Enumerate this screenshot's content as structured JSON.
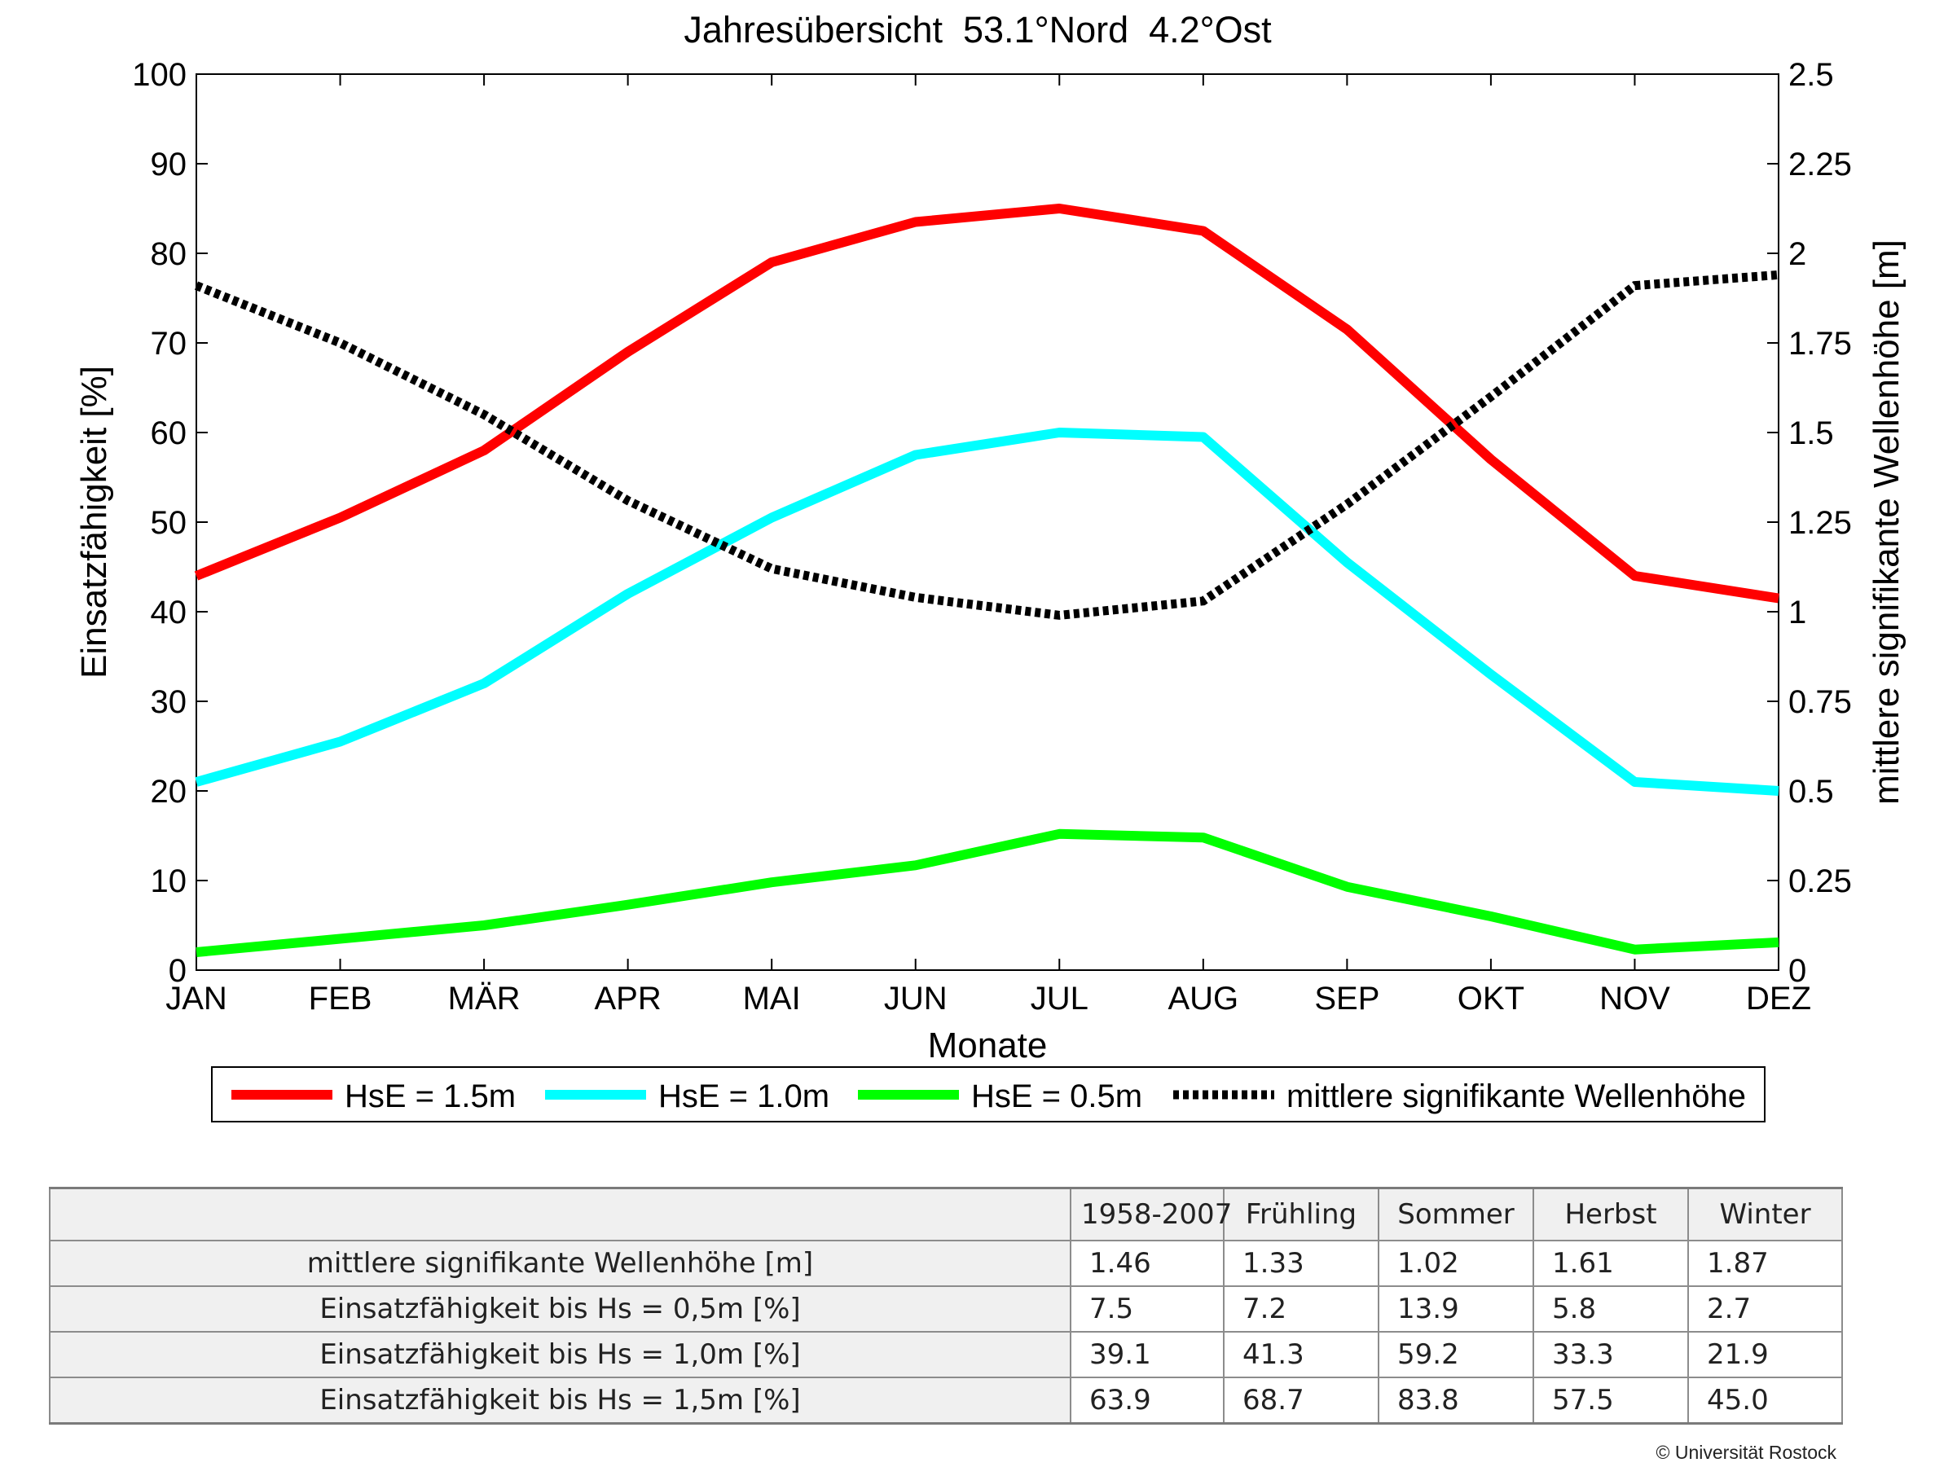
{
  "chart_data": {
    "type": "line",
    "title": "Jahresübersicht  53.1°Nord  4.2°Ost",
    "xlabel": "Monate",
    "ylabel": "Einsatzfähigkeit [%]",
    "y2label": "mittlere signifikante Wellenhöhe [m]",
    "categories": [
      "JAN",
      "FEB",
      "MÄR",
      "APR",
      "MAI",
      "JUN",
      "JUL",
      "AUG",
      "SEP",
      "OKT",
      "NOV",
      "DEZ"
    ],
    "ylim": [
      0,
      100
    ],
    "yticks": [
      "0",
      "10",
      "20",
      "30",
      "40",
      "50",
      "60",
      "70",
      "80",
      "90",
      "100"
    ],
    "y2lim": [
      0,
      2.5
    ],
    "y2ticks": [
      "0",
      "0.25",
      "0.5",
      "0.75",
      "1",
      "1.25",
      "1.5",
      "1.75",
      "2",
      "2.25",
      "2.5"
    ],
    "grid": false,
    "legend_position": "bottom",
    "series": [
      {
        "name": "HsE = 1.5m",
        "axis": "left",
        "style": "solid",
        "color": "#ff0000",
        "values": [
          44,
          50.5,
          58,
          69,
          79,
          83.5,
          85,
          82.5,
          71.5,
          57,
          44,
          41.5
        ]
      },
      {
        "name": "HsE = 1.0m",
        "axis": "left",
        "style": "solid",
        "color": "#00ffff",
        "values": [
          21,
          25.5,
          32,
          42,
          50.5,
          57.5,
          60,
          59.5,
          45.5,
          33,
          21,
          20
        ]
      },
      {
        "name": "HsE = 0.5m",
        "axis": "left",
        "style": "solid",
        "color": "#00ff00",
        "values": [
          2,
          3.5,
          5,
          7.3,
          9.8,
          11.7,
          15.2,
          14.8,
          9.3,
          6,
          2.3,
          3.1
        ]
      },
      {
        "name": "mittlere signifikante Wellenhöhe",
        "axis": "right",
        "style": "dotted",
        "color": "#000000",
        "values": [
          1.91,
          1.75,
          1.55,
          1.31,
          1.12,
          1.04,
          0.99,
          1.03,
          1.3,
          1.6,
          1.91,
          1.94
        ]
      }
    ]
  },
  "table": {
    "columns": [
      "1958-2007",
      "Frühling",
      "Sommer",
      "Herbst",
      "Winter"
    ],
    "rows": [
      {
        "label": "mittlere signifikante Wellenhöhe [m]",
        "values": [
          "1.46",
          "1.33",
          "1.02",
          "1.61",
          "1.87"
        ]
      },
      {
        "label": "Einsatzfähigkeit bis Hs = 0,5m [%]",
        "values": [
          "7.5",
          "7.2",
          "13.9",
          "5.8",
          "2.7"
        ]
      },
      {
        "label": "Einsatzfähigkeit bis Hs = 1,0m [%]",
        "values": [
          "39.1",
          "41.3",
          "59.2",
          "33.3",
          "21.9"
        ]
      },
      {
        "label": "Einsatzfähigkeit bis Hs = 1,5m [%]",
        "values": [
          "63.9",
          "68.7",
          "83.8",
          "57.5",
          "45.0"
        ]
      }
    ]
  },
  "copyright": "© Universität Rostock"
}
